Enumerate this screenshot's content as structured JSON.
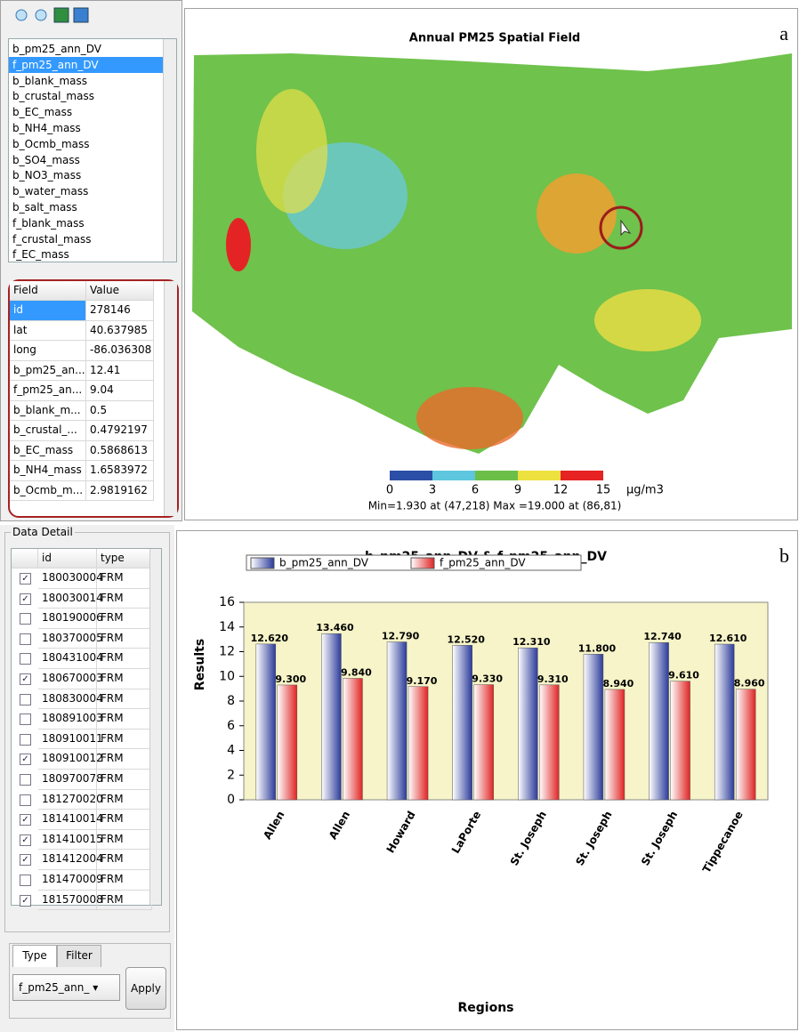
{
  "panel_a": {
    "label": "a",
    "field_list": {
      "items": [
        "b_pm25_ann_DV",
        "f_pm25_ann_DV",
        "b_blank_mass",
        "b_crustal_mass",
        "b_EC_mass",
        "b_NH4_mass",
        "b_Ocmb_mass",
        "b_SO4_mass",
        "b_NO3_mass",
        "b_water_mass",
        "b_salt_mass",
        "f_blank_mass",
        "f_crustal_mass",
        "f_EC_mass"
      ],
      "selected_index": 1
    },
    "attribute_table": {
      "headers": [
        "Field",
        "Value"
      ],
      "rows": [
        [
          "id",
          "278146"
        ],
        [
          "lat",
          "40.637985"
        ],
        [
          "long",
          "-86.036308"
        ],
        [
          "b_pm25_an...",
          "12.41"
        ],
        [
          "f_pm25_an...",
          "9.04"
        ],
        [
          "b_blank_m...",
          "0.5"
        ],
        [
          "b_crustal_...",
          "0.4792197"
        ],
        [
          "b_EC_mass",
          "0.5868613"
        ],
        [
          "b_NH4_mass",
          "1.6583972"
        ],
        [
          "b_Ocmb_m...",
          "2.9819162"
        ]
      ],
      "selected_row": 0
    },
    "map": {
      "title": "Annual PM25 Spatial Field",
      "colorbar": {
        "bins": [
          0,
          3,
          6,
          9,
          12,
          15
        ],
        "colors": [
          "#2b4ea6",
          "#5ec6de",
          "#6bbf48",
          "#ece13e",
          "#e62222"
        ],
        "unit": "μg/m3"
      },
      "range_text": "Min=1.930 at (47,218)  Max =19.000 at (86,81)"
    }
  },
  "panel_b": {
    "label": "b",
    "data_detail": {
      "title": "Data Detail",
      "headers": [
        "id",
        "type"
      ],
      "rows": [
        {
          "checked": true,
          "id": "180030004",
          "type": "FRM"
        },
        {
          "checked": true,
          "id": "180030014",
          "type": "FRM"
        },
        {
          "checked": false,
          "id": "180190006",
          "type": "FRM"
        },
        {
          "checked": false,
          "id": "180370005",
          "type": "FRM"
        },
        {
          "checked": false,
          "id": "180431004",
          "type": "FRM"
        },
        {
          "checked": true,
          "id": "180670003",
          "type": "FRM"
        },
        {
          "checked": false,
          "id": "180830004",
          "type": "FRM"
        },
        {
          "checked": false,
          "id": "180891003",
          "type": "FRM"
        },
        {
          "checked": false,
          "id": "180910011",
          "type": "FRM"
        },
        {
          "checked": true,
          "id": "180910012",
          "type": "FRM"
        },
        {
          "checked": false,
          "id": "180970078",
          "type": "FRM"
        },
        {
          "checked": false,
          "id": "181270020",
          "type": "FRM"
        },
        {
          "checked": true,
          "id": "181410014",
          "type": "FRM"
        },
        {
          "checked": true,
          "id": "181410015",
          "type": "FRM"
        },
        {
          "checked": true,
          "id": "181412004",
          "type": "FRM"
        },
        {
          "checked": false,
          "id": "181470009",
          "type": "FRM"
        },
        {
          "checked": true,
          "id": "181570008",
          "type": "FRM"
        }
      ]
    },
    "tabs": [
      "Type",
      "Filter"
    ],
    "dropdown": "f_pm25_ann_",
    "button": "Apply"
  },
  "chart_data": {
    "type": "bar",
    "title": "b_pm25_ann_DV & f_pm25_ann_DV",
    "x_label": "Regions",
    "y_label": "Results",
    "categories": [
      "Allen",
      "Allen",
      "Howard",
      "LaPorte",
      "St. Joseph",
      "St. Joseph",
      "St. Joseph",
      "Tippecanoe"
    ],
    "series": [
      {
        "name": "b_pm25_ann_DV",
        "color": "#2a3a9a",
        "values": [
          12.62,
          13.46,
          12.79,
          12.52,
          12.31,
          11.8,
          12.74,
          12.61
        ],
        "value_labels": [
          "12.620",
          "13.460",
          "12.790",
          "12.520",
          "12.310",
          "11.800",
          "12.740",
          "12.610"
        ]
      },
      {
        "name": "f_pm25_ann_DV",
        "color": "#e02424",
        "values": [
          9.3,
          9.84,
          9.17,
          9.33,
          9.31,
          8.94,
          9.61,
          8.96
        ],
        "value_labels": [
          "9.300",
          "9.840",
          "9.170",
          "9.330",
          "9.310",
          "8.940",
          "9.610",
          "8.960"
        ]
      }
    ],
    "ylim": [
      0,
      16
    ],
    "yticks": [
      0,
      2,
      4,
      6,
      8,
      10,
      12,
      14,
      16
    ],
    "legend": "top"
  }
}
